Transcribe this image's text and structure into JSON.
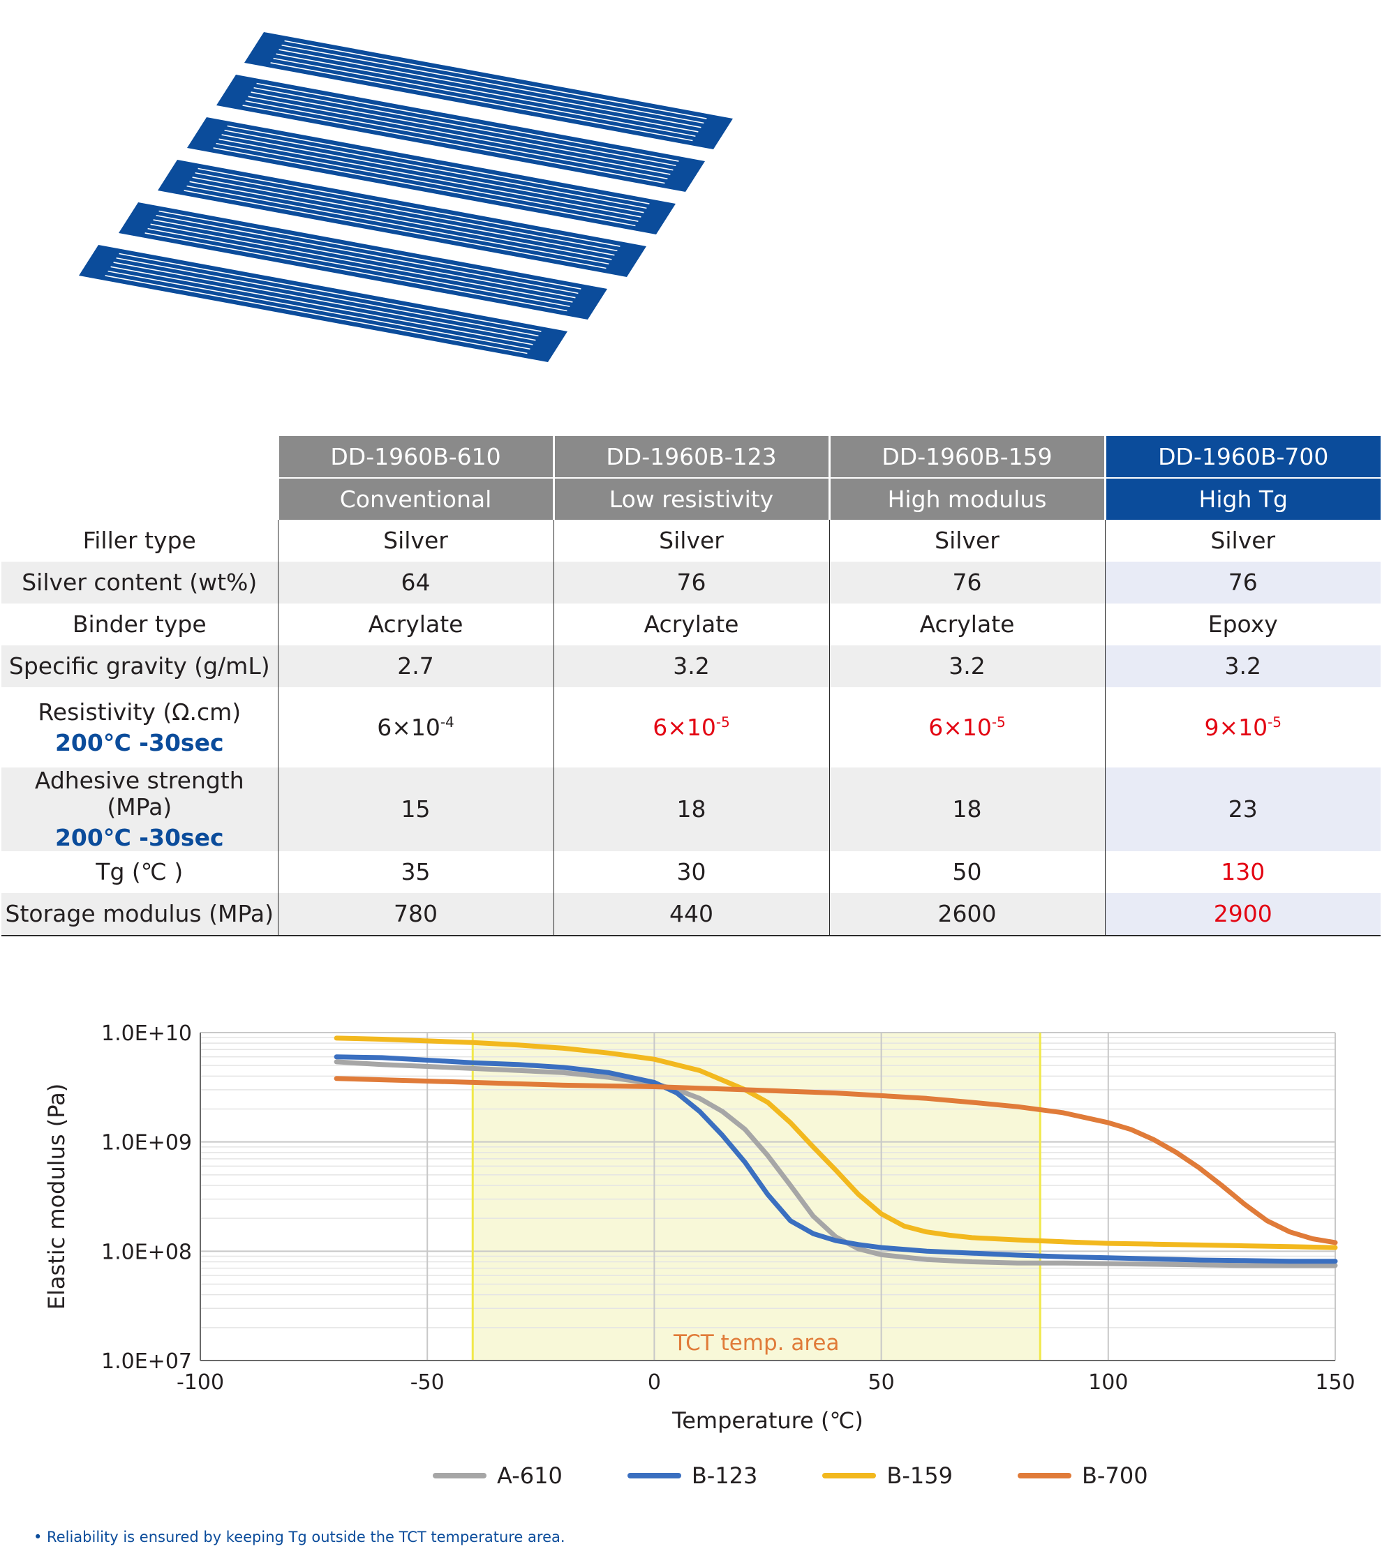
{
  "table": {
    "headers": [
      {
        "code": "DD-1960B-610",
        "desc": "Conventional",
        "highlight": false
      },
      {
        "code": "DD-1960B-123",
        "desc": "Low resistivity",
        "highlight": false
      },
      {
        "code": "DD-1960B-159",
        "desc": "High modulus",
        "highlight": false
      },
      {
        "code": "DD-1960B-700",
        "desc": "High Tg",
        "highlight": true
      }
    ],
    "rows": [
      {
        "label": "Filler type",
        "values": [
          "Silver",
          "Silver",
          "Silver",
          "Silver"
        ]
      },
      {
        "label": "Silver content (wt%)",
        "values": [
          "64",
          "76",
          "76",
          "76"
        ]
      },
      {
        "label": "Binder type",
        "values": [
          "Acrylate",
          "Acrylate",
          "Acrylate",
          "Epoxy"
        ]
      },
      {
        "label": "Specific gravity (g/mL)",
        "values": [
          "2.7",
          "3.2",
          "3.2",
          "3.2"
        ]
      },
      {
        "label": "Resistivity (Ω.cm)",
        "condition": "200℃ -30sec",
        "values": [
          {
            "mantissa": "6×10",
            "exp": "-4",
            "emphasis": false
          },
          {
            "mantissa": "6×10",
            "exp": "-5",
            "emphasis": true
          },
          {
            "mantissa": "6×10",
            "exp": "-5",
            "emphasis": true
          },
          {
            "mantissa": "9×10",
            "exp": "-5",
            "emphasis": true
          }
        ]
      },
      {
        "label": "Adhesive strength (MPa)",
        "condition": "200℃ -30sec",
        "values": [
          "15",
          "18",
          "18",
          "23"
        ]
      },
      {
        "label": "Tg (℃ )",
        "values": [
          "35",
          "30",
          "50",
          "130"
        ],
        "emphasis": [
          false,
          false,
          false,
          true
        ]
      },
      {
        "label": "Storage modulus (MPa)",
        "values": [
          "780",
          "440",
          "2600",
          "2900"
        ],
        "emphasis": [
          false,
          false,
          false,
          true
        ]
      }
    ]
  },
  "colors": {
    "header_gray": "#8a8a8a",
    "header_blue": "#0b4c9b",
    "emphasis_red": "#e30613",
    "ribbon_blue": "#0b4c9b"
  },
  "chart_data": {
    "type": "line",
    "title": "",
    "xlabel": "Temperature (℃)",
    "ylabel": "Elastic modulus (Pa)",
    "xlim": [
      -100,
      150
    ],
    "ylim": [
      10000000,
      10000000000
    ],
    "yscale": "log",
    "xticks": [
      -100,
      -50,
      0,
      50,
      100,
      150
    ],
    "xtick_labels": [
      "-100",
      "-50",
      "0",
      "50",
      "100",
      "150"
    ],
    "yticks": [
      10000000,
      100000000,
      1000000000,
      10000000000
    ],
    "ytick_labels": [
      "1.0E+07",
      "1.0E+08",
      "1.0E+09",
      "1.0E+10"
    ],
    "grid": true,
    "legend_position": "bottom",
    "annotation": {
      "text": "TCT temp. area",
      "x_range": [
        -40,
        85
      ],
      "color": "#f3f3b8",
      "line_color": "#f1e84a",
      "text_color": "#e07b39"
    },
    "series": [
      {
        "name": "A-610",
        "color": "#a6a6a6",
        "x": [
          -70,
          -60,
          -50,
          -40,
          -30,
          -20,
          -10,
          0,
          5,
          10,
          15,
          20,
          25,
          30,
          35,
          40,
          45,
          50,
          60,
          70,
          80,
          90,
          100,
          110,
          120,
          130,
          140,
          150
        ],
        "y": [
          5400000000,
          5100000000,
          4900000000,
          4700000000,
          4500000000,
          4300000000,
          3900000000,
          3400000000,
          3000000000,
          2500000000,
          1900000000,
          1300000000,
          750000000,
          400000000,
          210000000,
          135000000,
          105000000,
          93000000,
          84000000,
          80000000,
          78000000,
          78000000,
          77000000,
          76000000,
          75000000,
          74000000,
          74000000,
          74000000
        ]
      },
      {
        "name": "B-123",
        "color": "#3a6fc0",
        "x": [
          -70,
          -60,
          -50,
          -40,
          -30,
          -20,
          -10,
          0,
          5,
          10,
          15,
          20,
          25,
          30,
          35,
          40,
          45,
          50,
          60,
          70,
          80,
          90,
          100,
          110,
          120,
          130,
          140,
          150
        ],
        "y": [
          6000000000,
          5900000000,
          5600000000,
          5300000000,
          5100000000,
          4800000000,
          4300000000,
          3500000000,
          2800000000,
          1900000000,
          1150000000,
          650000000,
          330000000,
          190000000,
          145000000,
          125000000,
          115000000,
          108000000,
          100000000,
          96000000,
          92000000,
          89000000,
          87000000,
          85000000,
          83000000,
          82000000,
          81000000,
          81000000
        ]
      },
      {
        "name": "B-159",
        "color": "#f2b81e",
        "x": [
          -70,
          -60,
          -50,
          -40,
          -30,
          -20,
          -10,
          0,
          10,
          20,
          25,
          30,
          35,
          40,
          45,
          50,
          55,
          60,
          65,
          70,
          80,
          90,
          100,
          110,
          120,
          130,
          140,
          150
        ],
        "y": [
          8900000000,
          8700000000,
          8400000000,
          8100000000,
          7700000000,
          7200000000,
          6500000000,
          5700000000,
          4500000000,
          3000000000,
          2300000000,
          1500000000,
          900000000,
          550000000,
          330000000,
          220000000,
          170000000,
          150000000,
          140000000,
          133000000,
          127000000,
          122000000,
          118000000,
          116000000,
          114000000,
          112000000,
          110000000,
          108000000
        ]
      },
      {
        "name": "B-700",
        "color": "#e07b39",
        "x": [
          -70,
          -60,
          -50,
          -40,
          -30,
          -20,
          -10,
          0,
          10,
          20,
          30,
          40,
          50,
          60,
          70,
          80,
          90,
          100,
          105,
          110,
          115,
          120,
          125,
          130,
          135,
          140,
          145,
          150
        ],
        "y": [
          3800000000,
          3700000000,
          3600000000,
          3500000000,
          3400000000,
          3300000000,
          3250000000,
          3200000000,
          3100000000,
          3000000000,
          2900000000,
          2800000000,
          2650000000,
          2500000000,
          2300000000,
          2100000000,
          1850000000,
          1500000000,
          1300000000,
          1050000000,
          800000000,
          580000000,
          400000000,
          270000000,
          190000000,
          150000000,
          130000000,
          120000000
        ]
      }
    ]
  },
  "footnote": "• Reliability is ensured by keeping Tg outside the TCT temperature area."
}
